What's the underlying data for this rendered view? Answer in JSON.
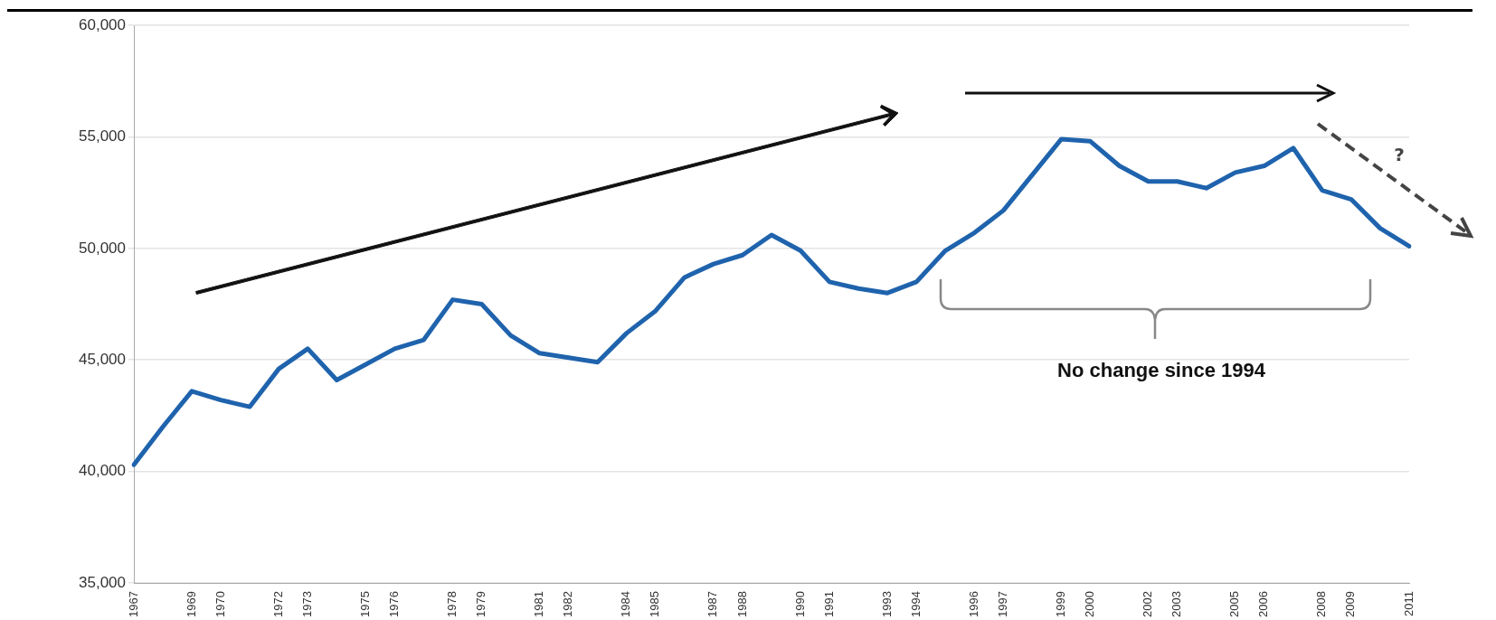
{
  "chart_data": {
    "type": "line",
    "categories": [
      "1967",
      null,
      "1969",
      "1970",
      null,
      "1972",
      "1973",
      null,
      "1975",
      "1976",
      null,
      "1978",
      "1979",
      null,
      "1981",
      "1982",
      null,
      "1984",
      "1985",
      null,
      "1987",
      "1988",
      null,
      "1990",
      "1991",
      null,
      "1993",
      "1994",
      null,
      "1996",
      "1997",
      null,
      "1999",
      "2000",
      null,
      "2002",
      "2003",
      null,
      "2005",
      "2006",
      null,
      "2008",
      "2009",
      null,
      "2011"
    ],
    "series": [
      {
        "color": "#1f63ad",
        "values": [
          40300,
          42000,
          43600,
          43200,
          42900,
          44600,
          45500,
          44100,
          44800,
          45500,
          45900,
          47700,
          47500,
          46100,
          45300,
          45100,
          44900,
          46200,
          47200,
          48700,
          49300,
          49700,
          50600,
          49900,
          48500,
          48200,
          48000,
          48500,
          49900,
          50700,
          51700,
          53300,
          54900,
          54800,
          53700,
          53000,
          53000,
          52700,
          53400,
          53700,
          54500,
          52600,
          52200,
          50900,
          50100
        ]
      }
    ],
    "ylim": [
      35000,
      60000
    ],
    "yticks": [
      {
        "value": 35000,
        "label": "35,000"
      },
      {
        "value": 40000,
        "label": "40,000"
      },
      {
        "value": 45000,
        "label": "45,000"
      },
      {
        "value": 50000,
        "label": "50,000"
      },
      {
        "value": 55000,
        "label": "55,000"
      },
      {
        "value": 60000,
        "label": "60,000"
      }
    ],
    "grid": "y",
    "marker": "none",
    "line_style": "solid",
    "annotations": [
      "No change since 1994",
      "?"
    ]
  }
}
